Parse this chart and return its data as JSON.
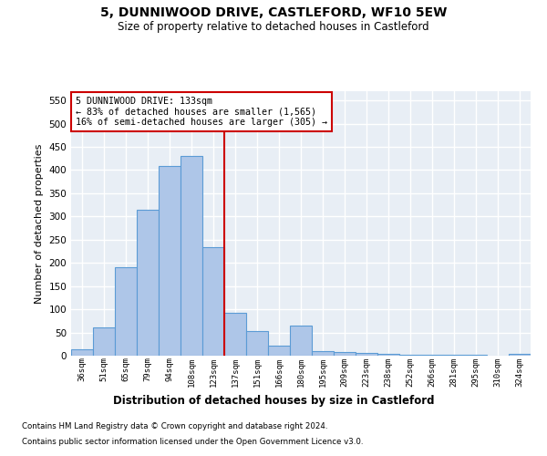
{
  "title": "5, DUNNIWOOD DRIVE, CASTLEFORD, WF10 5EW",
  "subtitle": "Size of property relative to detached houses in Castleford",
  "xlabel": "Distribution of detached houses by size in Castleford",
  "ylabel": "Number of detached properties",
  "categories": [
    "36sqm",
    "51sqm",
    "65sqm",
    "79sqm",
    "94sqm",
    "108sqm",
    "123sqm",
    "137sqm",
    "151sqm",
    "166sqm",
    "180sqm",
    "195sqm",
    "209sqm",
    "223sqm",
    "238sqm",
    "252sqm",
    "266sqm",
    "281sqm",
    "295sqm",
    "310sqm",
    "324sqm"
  ],
  "values": [
    13,
    60,
    190,
    315,
    408,
    430,
    233,
    93,
    53,
    22,
    65,
    10,
    7,
    5,
    3,
    2,
    1,
    1,
    1,
    0,
    4
  ],
  "bar_color": "#aec6e8",
  "bar_edge_color": "#5b9bd5",
  "vline_x": 6.5,
  "vline_color": "#cc0000",
  "annotation_text": "5 DUNNIWOOD DRIVE: 133sqm\n← 83% of detached houses are smaller (1,565)\n16% of semi-detached houses are larger (305) →",
  "annotation_box_color": "#ffffff",
  "annotation_box_edge": "#cc0000",
  "ylim": [
    0,
    570
  ],
  "yticks": [
    0,
    50,
    100,
    150,
    200,
    250,
    300,
    350,
    400,
    450,
    500,
    550
  ],
  "background_color": "#e8eef5",
  "grid_color": "#ffffff",
  "footnote1": "Contains HM Land Registry data © Crown copyright and database right 2024.",
  "footnote2": "Contains public sector information licensed under the Open Government Licence v3.0."
}
